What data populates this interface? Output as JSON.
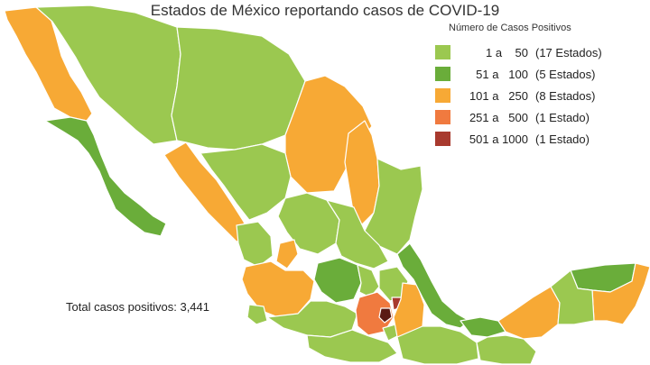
{
  "title": "Estados de México reportando casos de COVID-19",
  "legend": {
    "title": "Número de Casos Positivos",
    "items": [
      {
        "range": "1 a    50",
        "count": "(17 Estados)",
        "color": "#9bc850"
      },
      {
        "range": "51 a   100",
        "count": "(5 Estados)",
        "color": "#6aad3a"
      },
      {
        "range": "101 a   250",
        "count": "(8 Estados)",
        "color": "#f7a935"
      },
      {
        "range": "251 a   500",
        "count": "(1 Estado)",
        "color": "#f07a3f"
      },
      {
        "range": "501 a 1000",
        "count": "(1 Estado)",
        "color": "#a83a2e"
      }
    ]
  },
  "total": {
    "label": "Total casos positivos:",
    "value": "3,441"
  },
  "colors": {
    "low": "#9bc850",
    "mid": "#6aad3a",
    "high": "#f7a935",
    "higher": "#f07a3f",
    "highest": "#a83a2e",
    "darkest": "#5a1a14"
  }
}
